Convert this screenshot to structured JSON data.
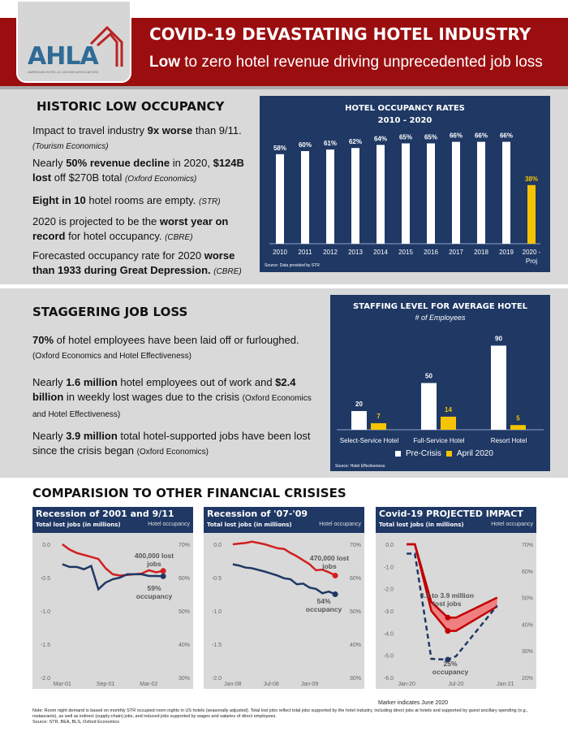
{
  "header": {
    "logo_text": "AHLA",
    "logo_subtext": "AMERICAN HOTEL & LODGING ASSOCIATION",
    "title": "COVID-19 DEVASTATING HOTEL INDUSTRY",
    "subtitle_bold": "Low",
    "subtitle_rest": " to zero hotel revenue driving unprecedented job loss",
    "brand_color": "#9b0e10",
    "navy": "#1f3864",
    "accent_yellow": "#f5c400"
  },
  "section1": {
    "heading": "HISTORIC LOW OCCUPANCY",
    "paragraphs": [
      [
        {
          "t": "Impact to travel industry "
        },
        {
          "t": "9x worse",
          "s": "b"
        },
        {
          "t": " than 9/11."
        },
        {
          "t": "(Tourism Economics)",
          "s": "i",
          "br": true
        }
      ],
      [
        {
          "t": "Nearly "
        },
        {
          "t": "50% revenue decline",
          "s": "b"
        },
        {
          "t": " in 2020, "
        },
        {
          "t": "$124B lost",
          "s": "b"
        },
        {
          "t": " off $270B total "
        },
        {
          "t": "(Oxford Economics)",
          "s": "i"
        }
      ],
      [
        {
          "t": "Eight in 10",
          "s": "b"
        },
        {
          "t": " hotel rooms are empty. "
        },
        {
          "t": "(STR)",
          "s": "i"
        }
      ],
      [
        {
          "t": "2020 is projected to be the "
        },
        {
          "t": "worst year on record",
          "s": "b"
        },
        {
          "t": " for hotel occupancy. "
        },
        {
          "t": "(CBRE)",
          "s": "i"
        }
      ],
      [
        {
          "t": "Forecasted occupancy rate for 2020 "
        },
        {
          "t": "worse than 1933 during Great Depression.",
          "s": "b"
        },
        {
          "t": " "
        },
        {
          "t": "(CBRE)",
          "s": "i"
        }
      ]
    ]
  },
  "section2": {
    "heading": "STAGGERING JOB LOSS",
    "paragraphs": [
      [
        {
          "t": "70%",
          "s": "b"
        },
        {
          "t": " of hotel employees have been laid off or furloughed. "
        },
        {
          "t": "(Oxford Economics and Hotel Effectiveness)",
          "s": "s"
        }
      ],
      [
        {
          "t": "Nearly "
        },
        {
          "t": "1.6 million",
          "s": "b"
        },
        {
          "t": " hotel employees out of work and "
        },
        {
          "t": "$2.4 billion",
          "s": "b"
        },
        {
          "t": " in weekly lost wages due to the crisis "
        },
        {
          "t": "(Oxford Economics and Hotel Effectiveness)",
          "s": "s"
        }
      ],
      [
        {
          "t": "Nearly "
        },
        {
          "t": "3.9 million",
          "s": "b"
        },
        {
          "t": " total hotel-supported jobs have been lost since the crisis began "
        },
        {
          "t": "(Oxford Economics)",
          "s": "s"
        }
      ]
    ]
  },
  "section3": {
    "heading": "COMPARISION TO OTHER FINANCIAL CRISISES"
  },
  "chart_data": [
    {
      "type": "bar",
      "title": "HOTEL OCCUPANCY RATES",
      "subtitle": "2010 - 2020",
      "source": "Source: Data provided by STR",
      "categories": [
        "2010",
        "2011",
        "2012",
        "2013",
        "2014",
        "2015",
        "2016",
        "2017",
        "2018",
        "2019",
        "2020 - Proj"
      ],
      "values": [
        58,
        60,
        61,
        62,
        64,
        65,
        65,
        66,
        66,
        66,
        38
      ],
      "data_labels": [
        "58%",
        "60%",
        "61%",
        "62%",
        "64%",
        "65%",
        "65%",
        "66%",
        "66%",
        "66%",
        "38%"
      ],
      "highlight_last": true
    },
    {
      "type": "bar",
      "title": "STAFFING LEVEL FOR AVERAGE HOTEL",
      "subtitle": "# of Employees",
      "source": "Source: Hotel Effectiveness",
      "legend": "bottom",
      "categories": [
        "Select-Service Hotel",
        "Full-Service Hotel",
        "Resort Hotel"
      ],
      "series": [
        {
          "name": "Pre-Crisis",
          "values": [
            20,
            50,
            90
          ],
          "color": "#ffffff"
        },
        {
          "name": "April 2020",
          "values": [
            7,
            14,
            5
          ],
          "color": "#f5c400"
        }
      ]
    },
    {
      "type": "line",
      "title": "Recession of 2001 and 9/11",
      "ylabel": "Total lost jobs (in millions)",
      "y2label": "Hotel occupancy",
      "ylim": [
        -2.0,
        0.0
      ],
      "y_ticks": [
        "0.0",
        "-0.5",
        "-1.0",
        "-1.5",
        "-2.0"
      ],
      "y2lim": [
        30,
        70
      ],
      "y2_ticks": [
        "70%",
        "60%",
        "50%",
        "40%",
        "30%"
      ],
      "x_ticks": [
        "Mar-01",
        "Sep-01",
        "Mar-02"
      ],
      "x_tick_dates": [
        "2001-03",
        "2001-09",
        "2002-03"
      ],
      "xlim": [
        "2001-02",
        "2002-06"
      ],
      "x": [
        "2001-03",
        "2001-04",
        "2001-05",
        "2001-06",
        "2001-07",
        "2001-08",
        "2001-09",
        "2001-10",
        "2001-11",
        "2001-12",
        "2002-01",
        "2002-02",
        "2002-03",
        "2002-04",
        "2002-05"
      ],
      "series": [
        {
          "axis": "left",
          "color": "#d21f1f",
          "values": [
            0,
            -0.08,
            -0.13,
            -0.16,
            -0.19,
            -0.22,
            -0.36,
            -0.45,
            -0.47,
            -0.46,
            -0.45,
            -0.44,
            -0.39,
            -0.42,
            -0.4
          ]
        },
        {
          "axis": "right",
          "color": "#1f3864",
          "values": [
            64,
            63.2,
            63.2,
            62.5,
            63.5,
            56.5,
            58.5,
            59.5,
            60,
            61,
            61,
            61,
            60.5,
            60.5,
            60.4
          ]
        }
      ],
      "annotations": [
        "400,000 lost jobs",
        "59% occupancy"
      ]
    },
    {
      "type": "line",
      "title": "Recession of '07-'09",
      "ylabel": "Total lost jobs (in millions)",
      "y2label": "Hotel occupancy",
      "ylim": [
        -2.0,
        0.0
      ],
      "y_ticks": [
        "0.0",
        "-0.5",
        "-1.0",
        "-1.5",
        "-2.0"
      ],
      "y2lim": [
        30,
        70
      ],
      "y2_ticks": [
        "70%",
        "60%",
        "50%",
        "40%",
        "30%"
      ],
      "x_ticks": [
        "Jan-08",
        "Jul-08",
        "Jan-09"
      ],
      "x_tick_dates": [
        "2008-01",
        "2008-07",
        "2009-01"
      ],
      "xlim": [
        "2007-12",
        "2009-06"
      ],
      "x": [
        "2008-01",
        "2008-02",
        "2008-03",
        "2008-04",
        "2008-05",
        "2008-06",
        "2008-07",
        "2008-08",
        "2008-09",
        "2008-10",
        "2008-11",
        "2008-12",
        "2009-01",
        "2009-02",
        "2009-03",
        "2009-04",
        "2009-05"
      ],
      "series": [
        {
          "axis": "left",
          "color": "#d21f1f",
          "values": [
            0,
            0.01,
            0.02,
            0.04,
            0.02,
            0,
            -0.03,
            -0.06,
            -0.07,
            -0.13,
            -0.18,
            -0.24,
            -0.3,
            -0.39,
            -0.38,
            -0.42,
            -0.47
          ]
        },
        {
          "axis": "right",
          "color": "#1f3864",
          "values": [
            64,
            63.6,
            63,
            62.8,
            62.3,
            61.8,
            61.2,
            60.6,
            59.8,
            59.5,
            58,
            58.2,
            57,
            56.6,
            55.3,
            55.8,
            55
          ]
        }
      ],
      "annotations": [
        "470,000 lost jobs",
        "54% occupancy"
      ]
    },
    {
      "type": "line",
      "title": "Covid-19 PROJECTED IMPACT",
      "ylabel": "Total lost jobs (in millions)",
      "y2label": "Hotel occupancy",
      "ylim": [
        -6.0,
        0.0
      ],
      "y_ticks": [
        "0.0",
        "-1.0",
        "-2.0",
        "-3.0",
        "-4.0",
        "-5.0",
        "-6.0"
      ],
      "y2lim": [
        20,
        70
      ],
      "y2_ticks": [
        "70%",
        "60%",
        "50%",
        "40%",
        "30%",
        "20%"
      ],
      "x_ticks": [
        "Jan-20",
        "Jul-20",
        "Jan-21"
      ],
      "x_tick_dates": [
        "2020-01",
        "2020-07",
        "2021-01"
      ],
      "xlim": [
        "2019-12",
        "2021-02"
      ],
      "x": [
        "2020-01",
        "2020-02",
        "2020-04",
        "2020-06",
        "2020-07",
        "2020-12"
      ],
      "series": [
        {
          "axis": "left",
          "color": "#c00000",
          "values": [
            0,
            0,
            -2.6,
            -3.3,
            -3.3,
            -2.4
          ]
        },
        {
          "axis": "left",
          "color": "#c00000",
          "values": [
            0,
            0,
            -3.0,
            -3.9,
            -3.9,
            -2.8
          ]
        },
        {
          "axis": "right",
          "color": "#1f3864",
          "dashed": true,
          "values": [
            66.5,
            66.5,
            27,
            26.7,
            28,
            47
          ]
        }
      ],
      "band_fill": "#f08080",
      "marker_date": "2020-06",
      "annotations": [
        "3.3 to 3.9 million lost jobs",
        "25% occupancy"
      ]
    }
  ],
  "footer": {
    "marker_note": "Marker indicates June 2020",
    "note": "Note: Room night demand is based on monthly STR occupied room nights in US hotels (seasonally adjusted). Total lost jobs reflect total jobs supported by the hotel industry, including direct jobs at hotels and supported by guest ancillary spending (e.g., restaurants), as well as indirect (supply-chain) jobs, and induced jobs supported by wages and salaries of direct employees.",
    "source": "Source: STR, BEA, BLS, Oxford Economics"
  }
}
